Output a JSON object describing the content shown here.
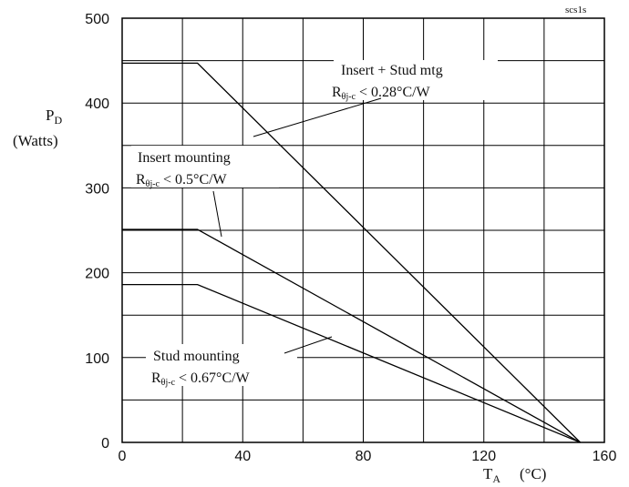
{
  "chart_data": {
    "type": "line",
    "corner_label": "scs1s",
    "ylabel_main": "P",
    "ylabel_sub": "D",
    "ylabel_unit": "(Watts)",
    "xlabel_main": "T",
    "xlabel_sub": "A",
    "xlabel_unit": "(°C)",
    "xlim": [
      0,
      160
    ],
    "ylim": [
      0,
      500
    ],
    "x_ticks": [
      0,
      40,
      80,
      120,
      160
    ],
    "y_ticks": [
      0,
      100,
      200,
      300,
      400,
      500
    ],
    "grid": true,
    "series": [
      {
        "name": "Insert + Stud mtg",
        "condition_prefix": "R",
        "condition_sub": "θj-c",
        "condition_value": " < 0.28°C/W",
        "points": [
          [
            0,
            447
          ],
          [
            25,
            447
          ],
          [
            152,
            0
          ]
        ]
      },
      {
        "name": "Insert mounting",
        "condition_prefix": "R",
        "condition_sub": "θj-c",
        "condition_value": " < 0.5°C/W",
        "points": [
          [
            0,
            251
          ],
          [
            25,
            251
          ],
          [
            152,
            0
          ]
        ]
      },
      {
        "name": "Stud mounting",
        "condition_prefix": "R",
        "condition_sub": "θj-c",
        "condition_value": " < 0.67°C/W",
        "points": [
          [
            0,
            186
          ],
          [
            25,
            186
          ],
          [
            152,
            0
          ]
        ]
      }
    ]
  }
}
